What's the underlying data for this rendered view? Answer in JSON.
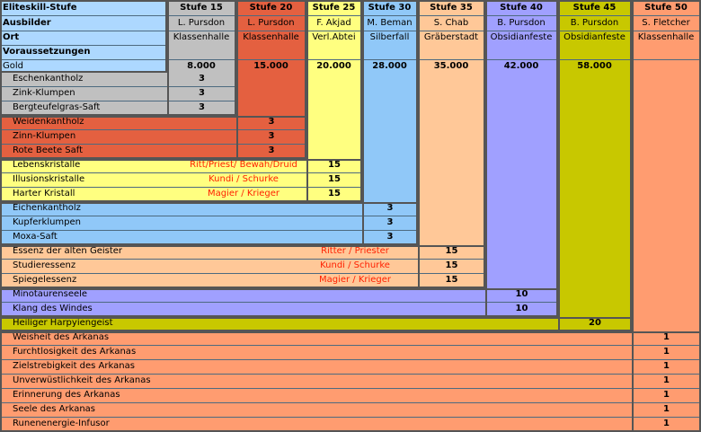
{
  "labels": {
    "elite_skill_level": "Eliteskill-Stufe",
    "trainer": "Ausbilder",
    "location": "Ort",
    "requirements": "Voraussetzungen",
    "gold": "Gold"
  },
  "tiers": [
    {
      "stufe": "Stufe 15",
      "ausbilder": "L. Pursdon",
      "ort": "Klassenhalle",
      "gold": "8.000",
      "color": "#c0c0c0"
    },
    {
      "stufe": "Stufe 20",
      "ausbilder": "L. Pursdon",
      "ort": "Klassenhalle",
      "gold": "15.000",
      "color": "#e46040"
    },
    {
      "stufe": "Stufe 25",
      "ausbilder": "F. Akjad",
      "ort": "Verl.Abtei",
      "gold": "20.000",
      "color": "#ffff80"
    },
    {
      "stufe": "Stufe 30",
      "ausbilder": "M. Beman",
      "ort": "Silberfall",
      "gold": "28.000",
      "color": "#90c8f8"
    },
    {
      "stufe": "Stufe 35",
      "ausbilder": "S. Chab",
      "ort": "Gräberstadt",
      "gold": "35.000",
      "color": "#ffc898"
    },
    {
      "stufe": "Stufe 40",
      "ausbilder": "B. Pursdon",
      "ort": "Obsidianfeste",
      "gold": "42.000",
      "color": "#a0a0ff"
    },
    {
      "stufe": "Stufe 45",
      "ausbilder": "B. Pursdon",
      "ort": "Obsidianfeste",
      "gold": "58.000",
      "color": "#c8c800"
    },
    {
      "stufe": "Stufe 50",
      "ausbilder": "S. Fletcher",
      "ort": "Klassenhalle",
      "gold": "",
      "color": "#ff9c70"
    }
  ],
  "materials": [
    {
      "name": "Eschenkantholz",
      "tier": 0,
      "qty": "3",
      "class": ""
    },
    {
      "name": "Zink-Klumpen",
      "tier": 0,
      "qty": "3",
      "class": ""
    },
    {
      "name": "Bergteufelgras-Saft",
      "tier": 0,
      "qty": "3",
      "class": ""
    },
    {
      "name": "Weidenkantholz",
      "tier": 1,
      "qty": "3",
      "class": ""
    },
    {
      "name": "Zinn-Klumpen",
      "tier": 1,
      "qty": "3",
      "class": ""
    },
    {
      "name": "Rote Beete Saft",
      "tier": 1,
      "qty": "3",
      "class": ""
    },
    {
      "name": "Lebenskristalle",
      "tier": 2,
      "qty": "15",
      "class": "Ritt/Priest/ Bewah/Druid"
    },
    {
      "name": "Illusionskristalle",
      "tier": 2,
      "qty": "15",
      "class": "Kundi / Schurke"
    },
    {
      "name": "Harter Kristall",
      "tier": 2,
      "qty": "15",
      "class": "Magier / Krieger"
    },
    {
      "name": "Eichenkantholz",
      "tier": 3,
      "qty": "3",
      "class": ""
    },
    {
      "name": "Kupferklumpen",
      "tier": 3,
      "qty": "3",
      "class": ""
    },
    {
      "name": "Moxa-Saft",
      "tier": 3,
      "qty": "3",
      "class": ""
    },
    {
      "name": "Essenz der alten Geister",
      "tier": 4,
      "qty": "15",
      "class": "Ritter / Priester"
    },
    {
      "name": "Studieressenz",
      "tier": 4,
      "qty": "15",
      "class": "Kundi / Schurke"
    },
    {
      "name": "Spiegelessenz",
      "tier": 4,
      "qty": "15",
      "class": "Magier / Krieger"
    },
    {
      "name": "Minotaurenseele",
      "tier": 5,
      "qty": "10",
      "class": ""
    },
    {
      "name": "Klang des Windes",
      "tier": 5,
      "qty": "10",
      "class": ""
    },
    {
      "name": "Heiliger Harpyiengeist",
      "tier": 6,
      "qty": "20",
      "class": ""
    },
    {
      "name": "Weisheit des Arkanas",
      "tier": 7,
      "qty": "1",
      "class": ""
    },
    {
      "name": "Furchtlosigkeit des Arkanas",
      "tier": 7,
      "qty": "1",
      "class": ""
    },
    {
      "name": "Zielstrebigkeit des Arkanas",
      "tier": 7,
      "qty": "1",
      "class": ""
    },
    {
      "name": "Unverwüstlichkeit des Arkanas",
      "tier": 7,
      "qty": "1",
      "class": ""
    },
    {
      "name": "Erinnerung des Arkanas",
      "tier": 7,
      "qty": "1",
      "class": ""
    },
    {
      "name": "Seele des Arkanas",
      "tier": 7,
      "qty": "1",
      "class": ""
    },
    {
      "name": "Runenenergie-Infusor",
      "tier": 7,
      "qty": "1",
      "class": ""
    }
  ]
}
